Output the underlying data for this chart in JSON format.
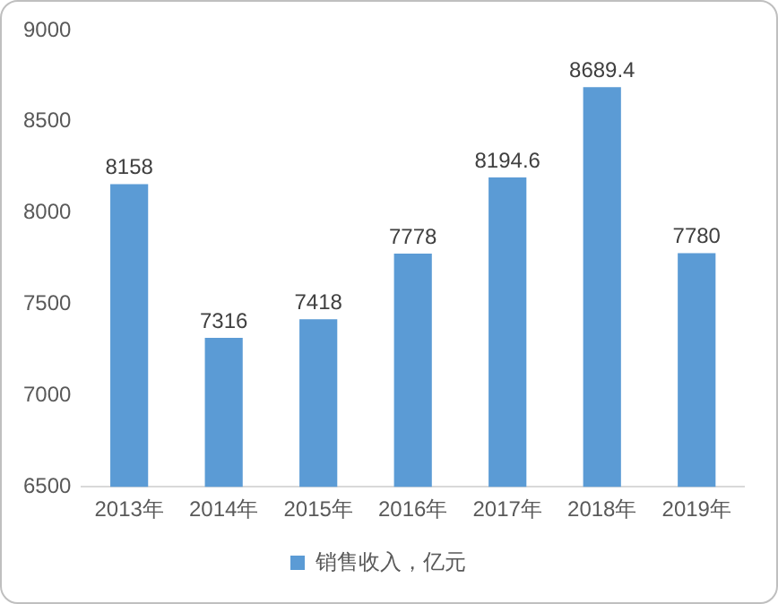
{
  "chart_data": {
    "type": "bar",
    "categories": [
      "2013年",
      "2014年",
      "2015年",
      "2016年",
      "2017年",
      "2018年",
      "2019年"
    ],
    "series": [
      {
        "name": "销售收入，亿元",
        "color": "#5b9bd5",
        "values": [
          8158,
          7316,
          7418,
          7778,
          8194.6,
          8689.4,
          7780
        ]
      }
    ],
    "ylim": [
      6500,
      9000
    ],
    "yticks": [
      6500,
      7000,
      7500,
      8000,
      8500,
      9000
    ],
    "grid": false,
    "legend": "bottom",
    "data_labels": true
  }
}
